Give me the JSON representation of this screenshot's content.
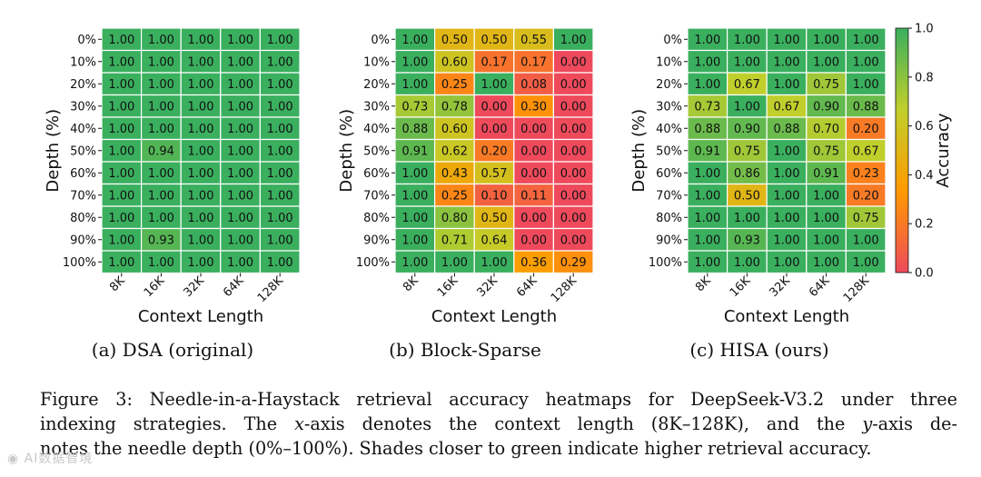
{
  "chart_data": [
    {
      "type": "heatmap",
      "panel": "a",
      "caption": "(a) DSA (original)",
      "xlabel": "Context Length",
      "ylabel": "Depth (%)",
      "x_categories": [
        "8K",
        "16K",
        "32K",
        "64K",
        "128K"
      ],
      "y_categories": [
        "0%",
        "10%",
        "20%",
        "30%",
        "40%",
        "50%",
        "60%",
        "70%",
        "80%",
        "90%",
        "100%"
      ],
      "values": [
        [
          1.0,
          1.0,
          1.0,
          1.0,
          1.0
        ],
        [
          1.0,
          1.0,
          1.0,
          1.0,
          1.0
        ],
        [
          1.0,
          1.0,
          1.0,
          1.0,
          1.0
        ],
        [
          1.0,
          1.0,
          1.0,
          1.0,
          1.0
        ],
        [
          1.0,
          1.0,
          1.0,
          1.0,
          1.0
        ],
        [
          1.0,
          0.94,
          1.0,
          1.0,
          1.0
        ],
        [
          1.0,
          1.0,
          1.0,
          1.0,
          1.0
        ],
        [
          1.0,
          1.0,
          1.0,
          1.0,
          1.0
        ],
        [
          1.0,
          1.0,
          1.0,
          1.0,
          1.0
        ],
        [
          1.0,
          0.93,
          1.0,
          1.0,
          1.0
        ],
        [
          1.0,
          1.0,
          1.0,
          1.0,
          1.0
        ]
      ]
    },
    {
      "type": "heatmap",
      "panel": "b",
      "caption": "(b) Block-Sparse",
      "xlabel": "Context Length",
      "ylabel": "Depth (%)",
      "x_categories": [
        "8K",
        "16K",
        "32K",
        "64K",
        "128K"
      ],
      "y_categories": [
        "0%",
        "10%",
        "20%",
        "30%",
        "40%",
        "50%",
        "60%",
        "70%",
        "80%",
        "90%",
        "100%"
      ],
      "values": [
        [
          1.0,
          0.5,
          0.5,
          0.55,
          1.0
        ],
        [
          1.0,
          0.6,
          0.17,
          0.17,
          0.0
        ],
        [
          1.0,
          0.25,
          1.0,
          0.08,
          0.0
        ],
        [
          0.73,
          0.78,
          0.0,
          0.3,
          0.0
        ],
        [
          0.88,
          0.6,
          0.0,
          0.0,
          0.0
        ],
        [
          0.91,
          0.62,
          0.2,
          0.0,
          0.0
        ],
        [
          1.0,
          0.43,
          0.57,
          0.0,
          0.0
        ],
        [
          1.0,
          0.25,
          0.1,
          0.11,
          0.0
        ],
        [
          1.0,
          0.8,
          0.5,
          0.0,
          0.0
        ],
        [
          1.0,
          0.71,
          0.64,
          0.0,
          0.0
        ],
        [
          1.0,
          1.0,
          1.0,
          0.36,
          0.29
        ]
      ]
    },
    {
      "type": "heatmap",
      "panel": "c",
      "caption": "(c) HISA (ours)",
      "xlabel": "Context Length",
      "ylabel": "Depth (%)",
      "x_categories": [
        "8K",
        "16K",
        "32K",
        "64K",
        "128K"
      ],
      "y_categories": [
        "0%",
        "10%",
        "20%",
        "30%",
        "40%",
        "50%",
        "60%",
        "70%",
        "80%",
        "90%",
        "100%"
      ],
      "values": [
        [
          1.0,
          1.0,
          1.0,
          1.0,
          1.0
        ],
        [
          1.0,
          1.0,
          1.0,
          1.0,
          1.0
        ],
        [
          1.0,
          0.67,
          1.0,
          0.75,
          1.0
        ],
        [
          0.73,
          1.0,
          0.67,
          0.9,
          0.88
        ],
        [
          0.88,
          0.9,
          0.88,
          0.7,
          0.2
        ],
        [
          0.91,
          0.75,
          1.0,
          0.75,
          0.67
        ],
        [
          1.0,
          0.86,
          1.0,
          0.91,
          0.23
        ],
        [
          1.0,
          0.5,
          1.0,
          1.0,
          0.2
        ],
        [
          1.0,
          1.0,
          1.0,
          1.0,
          0.75
        ],
        [
          1.0,
          0.93,
          1.0,
          1.0,
          1.0
        ],
        [
          1.0,
          1.0,
          1.0,
          1.0,
          1.0
        ]
      ]
    }
  ],
  "colorbar": {
    "label": "Accuracy",
    "range": [
      0.0,
      1.0
    ],
    "ticks": [
      "0.0",
      "0.2",
      "0.4",
      "0.6",
      "0.8",
      "1.0"
    ],
    "colormap": [
      "#ee4a5c",
      "#ff9a00",
      "#c1cf2b",
      "#3aaf5e"
    ]
  },
  "caption": {
    "line1": "Figure 3: Needle-in-a-Haystack retrieval accuracy heatmaps for DeepSeek-V3.2 under three",
    "line2a": "indexing strategies. The ",
    "line2x": "x",
    "line2b": "-axis denotes the context length (8K–128K), and the ",
    "line2y": "y",
    "line2c": "-axis de-",
    "line3": "notes the needle depth (0%–100%). Shades closer to green indicate higher retrieval accuracy."
  },
  "watermark": "AI数据智境"
}
